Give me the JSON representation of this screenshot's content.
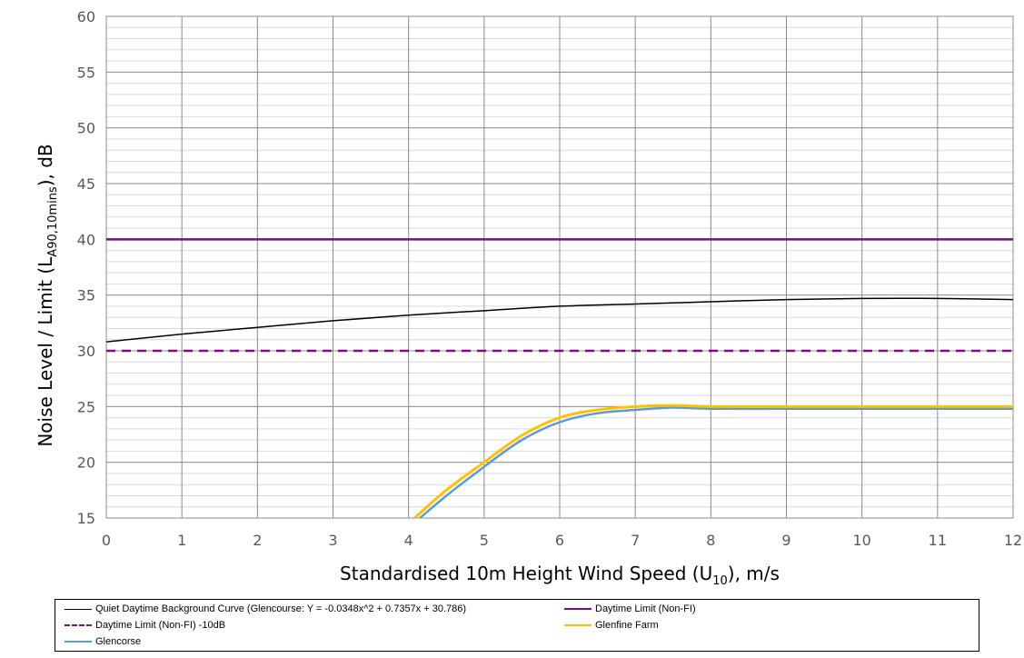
{
  "chart_data": {
    "type": "line",
    "xlabel_main": "Standardised 10m Height Wind Speed (U",
    "xlabel_sub": "10",
    "xlabel_tail": "), m/s",
    "ylabel_main": "Noise Level / Limit (L",
    "ylabel_sub": "A90,10mins",
    "ylabel_tail": "), dB",
    "xlim": [
      0,
      12
    ],
    "ylim": [
      15,
      60
    ],
    "x_ticks": [
      0,
      1,
      2,
      3,
      4,
      5,
      6,
      7,
      8,
      9,
      10,
      11,
      12
    ],
    "y_ticks": [
      15,
      20,
      25,
      30,
      35,
      40,
      45,
      50,
      55,
      60
    ],
    "grid": true,
    "legend_position": "bottom",
    "series": [
      {
        "name": "Quiet Daytime Background Curve (Glencourse: Y = -0.0348x^2 + 0.7357x + 30.786)",
        "color": "#000000",
        "dash": "solid",
        "x": [
          0,
          1,
          2,
          3,
          4,
          5,
          6,
          7,
          8,
          9,
          10,
          11,
          12
        ],
        "y": [
          30.8,
          31.5,
          32.1,
          32.7,
          33.2,
          33.6,
          34.0,
          34.2,
          34.4,
          34.6,
          34.7,
          34.7,
          34.6
        ]
      },
      {
        "name": "Daytime Limit (Non-FI)",
        "color": "#7B0F7D",
        "dash": "solid",
        "x": [
          0,
          12
        ],
        "y": [
          40,
          40
        ]
      },
      {
        "name": "Daytime Limit (Non-FI) -10dB",
        "color": "#7B0F7D",
        "dash": "dashed",
        "x": [
          0,
          12
        ],
        "y": [
          30,
          30
        ]
      },
      {
        "name": "Glenfine Farm",
        "color": "#FFC000",
        "dash": "solid",
        "x": [
          4.08,
          4.5,
          5,
          5.5,
          6,
          6.5,
          7,
          7.5,
          8,
          9,
          10,
          11,
          12
        ],
        "y": [
          15.0,
          17.5,
          20.0,
          22.4,
          24.0,
          24.7,
          25.0,
          25.1,
          25.0,
          25.0,
          25.0,
          25.0,
          25.0
        ]
      },
      {
        "name": "Glencorse",
        "color": "#5B9BD5",
        "dash": "solid",
        "x": [
          4.15,
          4.5,
          5,
          5.5,
          6,
          6.5,
          7,
          7.5,
          8,
          9,
          10,
          11,
          12
        ],
        "y": [
          15.0,
          17.0,
          19.6,
          22.0,
          23.6,
          24.4,
          24.7,
          24.9,
          24.8,
          24.8,
          24.8,
          24.8,
          24.8
        ]
      }
    ]
  }
}
